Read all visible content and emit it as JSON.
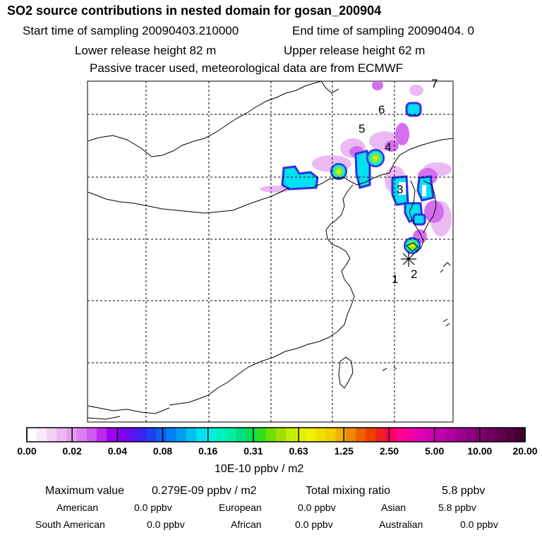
{
  "header": {
    "title": "SO2 source contributions in nested domain for gosan_200904",
    "start_label": "Start time of sampling 20090403.210000",
    "end_label": "End time of sampling 20090404.     0",
    "lower_label": "Lower release height   82 m",
    "upper_label": "Upper release height   62 m",
    "tracer_label": "Passive tracer used, meteorological data are from ECMWF"
  },
  "map": {
    "markers": [
      "1",
      "2",
      "3",
      "4",
      "5",
      "6",
      "7"
    ],
    "receptor": "gosan"
  },
  "colorbar": {
    "labels": [
      "0.00",
      "0.02",
      "0.04",
      "0.08",
      "0.16",
      "0.31",
      "0.63",
      "1.25",
      "2.50",
      "5.00",
      "10.00",
      "20.00"
    ],
    "colors": [
      "#ffffff",
      "#fbe8fb",
      "#f6d1f6",
      "#efb7f3",
      "#e79cf0",
      "#dd7ff0",
      "#cf5cf0",
      "#c02af0",
      "#a000f0",
      "#8000f0",
      "#6010f0",
      "#4020f0",
      "#2040f0",
      "#1060f0",
      "#0080f0",
      "#00a0f0",
      "#00c0f0",
      "#00e0f0",
      "#00f0e0",
      "#00f0c0",
      "#00f0a0",
      "#00e080",
      "#00e050",
      "#30e020",
      "#70e000",
      "#a0e000",
      "#c0f000",
      "#e0f000",
      "#f0f000",
      "#f0e000",
      "#f0d000",
      "#f0b000",
      "#f08800",
      "#f06000",
      "#f04000",
      "#f02020",
      "#ff0060",
      "#ff0090",
      "#f000a0",
      "#e000b0",
      "#d000b0",
      "#c000b0",
      "#b000a0",
      "#a00090",
      "#900080",
      "#800070",
      "#700060",
      "#600050",
      "#500040",
      "#400030"
    ],
    "unit": "10E-10 ppbv / m2"
  },
  "summary": {
    "max_label": "Maximum value",
    "max_value": "0.279E-09 ppbv / m2",
    "total_label": "Total mixing ratio",
    "total_value": "5.8 ppbv",
    "regions": [
      {
        "name": "American",
        "value": "0.0 ppbv"
      },
      {
        "name": "European",
        "value": "0.0 ppbv"
      },
      {
        "name": "Asian",
        "value": "5.8 ppbv"
      },
      {
        "name": "South American",
        "value": "0.0 ppbv"
      },
      {
        "name": "African",
        "value": "0.0 ppbv"
      },
      {
        "name": "Australian",
        "value": "0.0 ppbv"
      }
    ]
  }
}
